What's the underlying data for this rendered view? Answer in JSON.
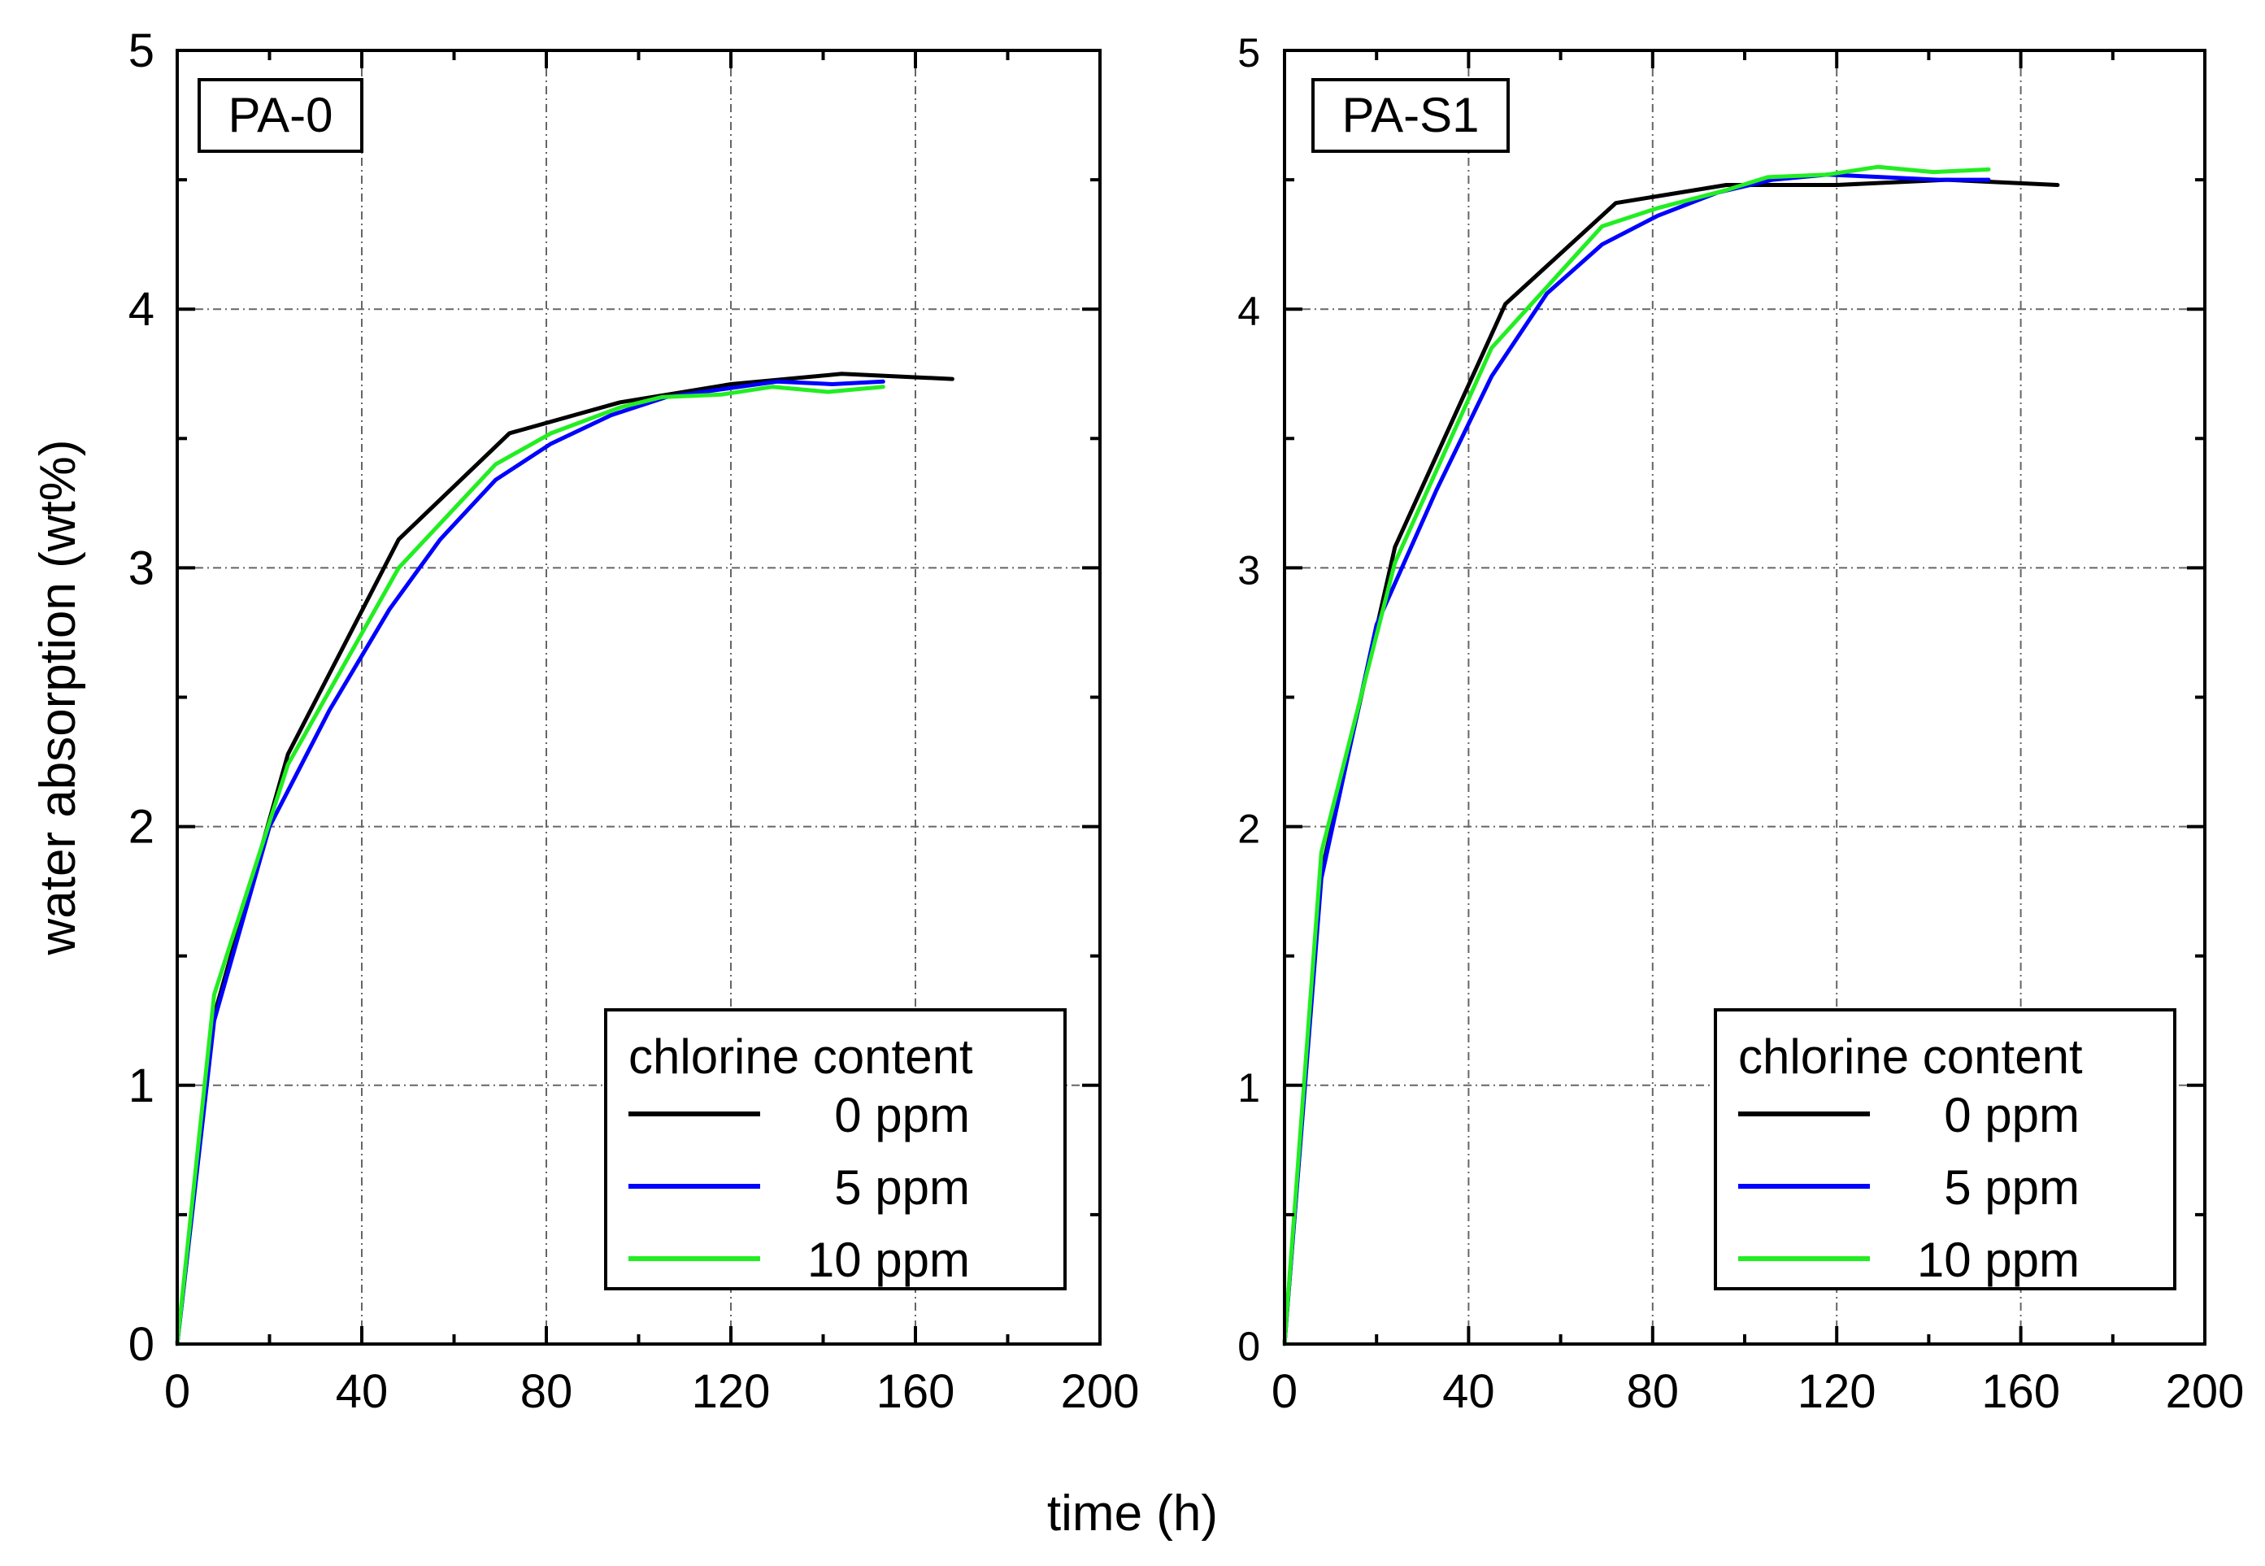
{
  "chart_data": [
    {
      "type": "line",
      "panel_label": "PA-0",
      "xlabel": "time (h)",
      "ylabel": "water absorption (wt%)",
      "xlim": [
        0,
        200
      ],
      "ylim": [
        0,
        5
      ],
      "xticks": [
        "0",
        "40",
        "80",
        "120",
        "160",
        "200"
      ],
      "yticks": [
        "0",
        "1",
        "2",
        "3",
        "4",
        "5"
      ],
      "grid": true,
      "legend": {
        "title": "chlorine content",
        "placement": "bottom-right"
      },
      "series": [
        {
          "name": "0 ppm",
          "color": "#000000",
          "x": [
            0,
            8,
            24,
            48,
            72,
            96,
            120,
            144,
            168
          ],
          "y": [
            0,
            1.27,
            2.28,
            3.11,
            3.52,
            3.64,
            3.71,
            3.75,
            3.73
          ]
        },
        {
          "name": "5 ppm",
          "color": "#0000ff",
          "x": [
            0,
            8,
            20,
            33,
            46,
            57,
            69,
            81,
            94,
            106,
            118,
            130,
            142,
            153
          ],
          "y": [
            0,
            1.25,
            2.0,
            2.45,
            2.84,
            3.11,
            3.34,
            3.48,
            3.59,
            3.66,
            3.69,
            3.72,
            3.71,
            3.72
          ]
        },
        {
          "name": "10 ppm",
          "color": "#22ee22",
          "x": [
            0,
            8,
            24,
            48,
            69,
            81,
            96,
            105,
            118,
            129,
            141,
            153
          ],
          "y": [
            0,
            1.35,
            2.24,
            3.0,
            3.4,
            3.52,
            3.62,
            3.66,
            3.67,
            3.7,
            3.68,
            3.7
          ]
        }
      ]
    },
    {
      "type": "line",
      "panel_label": "PA-S1",
      "xlabel": "time (h)",
      "ylabel": "",
      "xlim": [
        0,
        200
      ],
      "ylim": [
        0,
        5
      ],
      "xticks": [
        "0",
        "40",
        "80",
        "120",
        "160",
        "200"
      ],
      "yticks": [
        "0",
        "1",
        "2",
        "3",
        "4",
        "5"
      ],
      "grid": true,
      "legend": {
        "title": "chlorine content",
        "placement": "bottom-right"
      },
      "series": [
        {
          "name": "0 ppm",
          "color": "#000000",
          "x": [
            0,
            8,
            24,
            48,
            72,
            96,
            120,
            144,
            168
          ],
          "y": [
            0,
            1.82,
            3.08,
            4.02,
            4.41,
            4.48,
            4.48,
            4.5,
            4.48
          ]
        },
        {
          "name": "5 ppm",
          "color": "#0000ff",
          "x": [
            0,
            8,
            20,
            33,
            45,
            57,
            69,
            81,
            94,
            106,
            118,
            130,
            142,
            153
          ],
          "y": [
            0,
            1.8,
            2.78,
            3.3,
            3.74,
            4.06,
            4.25,
            4.36,
            4.45,
            4.5,
            4.52,
            4.51,
            4.5,
            4.5
          ]
        },
        {
          "name": "10 ppm",
          "color": "#22ee22",
          "x": [
            0,
            8,
            24,
            45,
            69,
            81,
            96,
            105,
            118,
            129,
            141,
            153
          ],
          "y": [
            0,
            1.9,
            3.02,
            3.85,
            4.32,
            4.39,
            4.46,
            4.51,
            4.52,
            4.55,
            4.53,
            4.54
          ]
        }
      ]
    }
  ]
}
